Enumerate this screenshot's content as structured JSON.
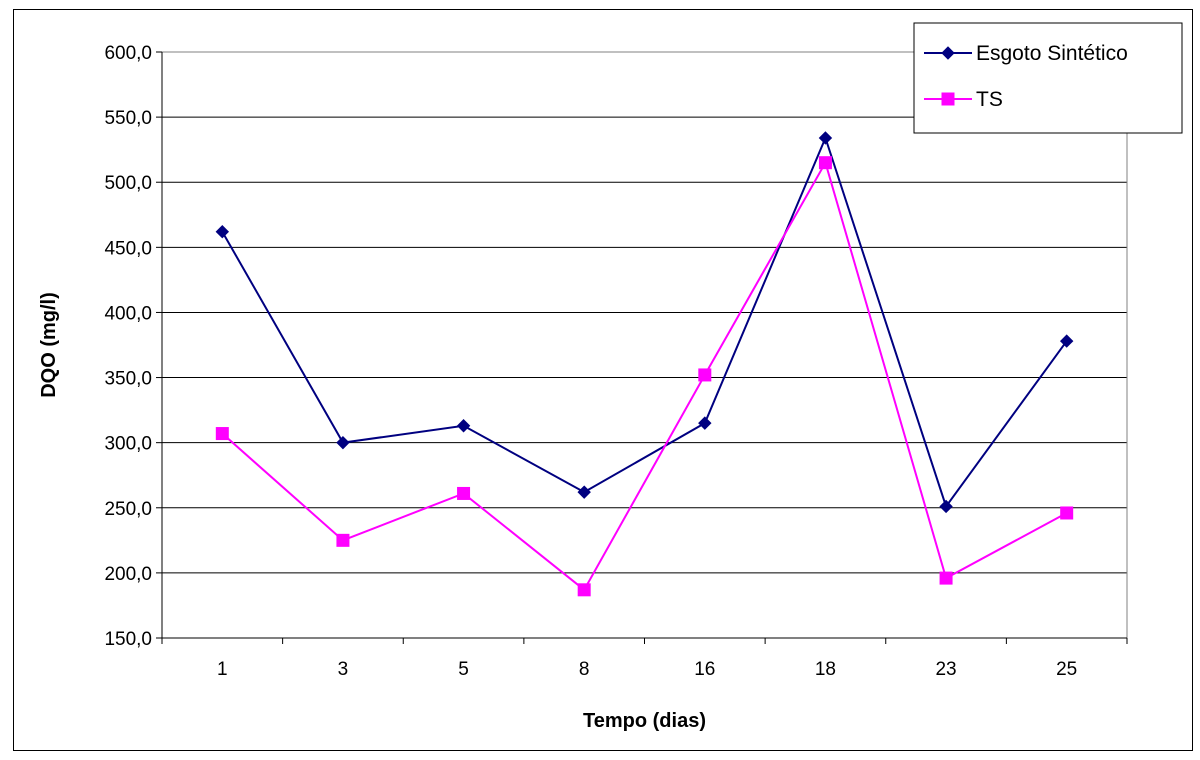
{
  "chart_data": {
    "type": "line",
    "title": "",
    "xlabel": "Tempo (dias)",
    "ylabel": "DQO (mg/l)",
    "categories": [
      "1",
      "3",
      "5",
      "8",
      "16",
      "18",
      "23",
      "25"
    ],
    "ylim": [
      150,
      600
    ],
    "yticks": [
      "150,0",
      "200,0",
      "250,0",
      "300,0",
      "350,0",
      "400,0",
      "450,0",
      "500,0",
      "550,0",
      "600,0"
    ],
    "grid": "horizontal",
    "legend_position": "top-right",
    "series": [
      {
        "name": "Esgoto Sintético",
        "color": "#000080",
        "marker": "diamond",
        "values": [
          462,
          300,
          313,
          262,
          315,
          534,
          251,
          378
        ]
      },
      {
        "name": "TS",
        "color": "#FF00FF",
        "marker": "square",
        "values": [
          307,
          225,
          261,
          187,
          352,
          515,
          196,
          246
        ]
      }
    ]
  }
}
